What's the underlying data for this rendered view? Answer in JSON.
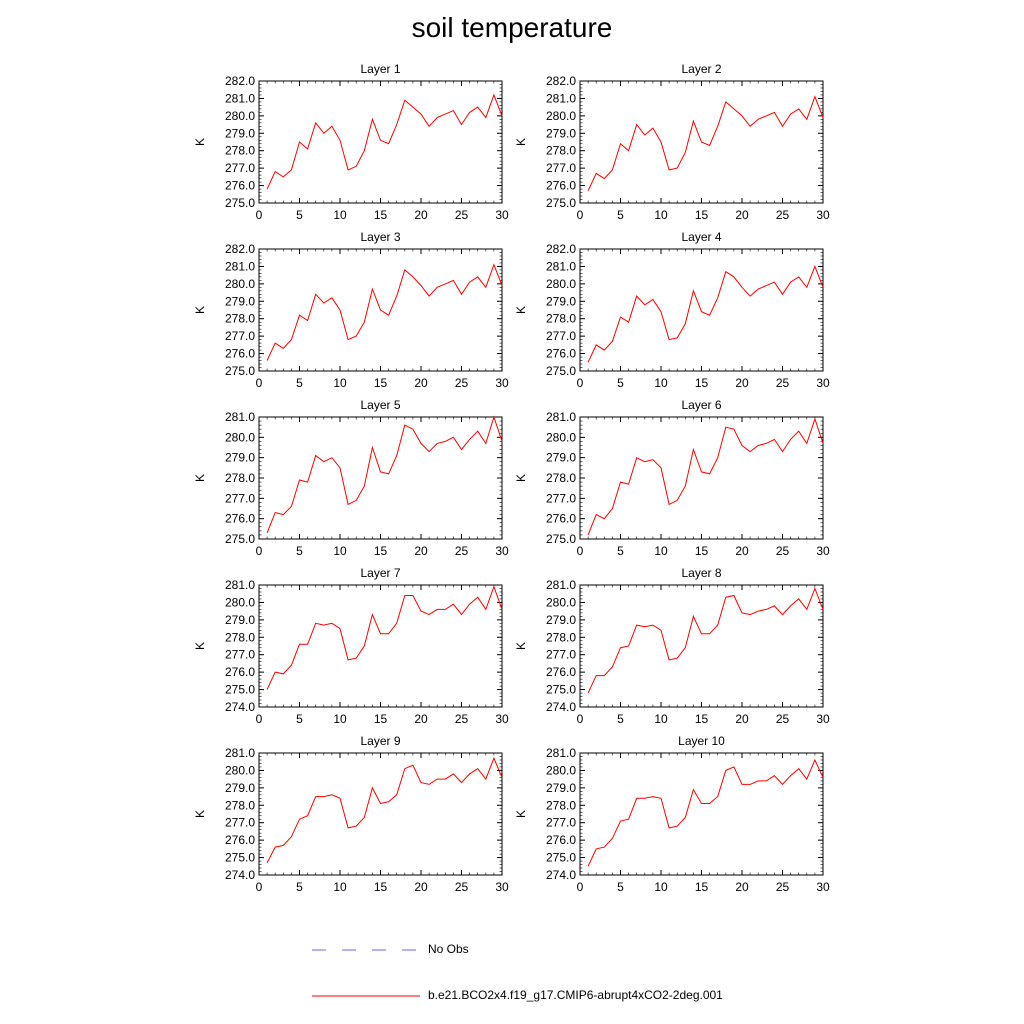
{
  "title": "soil temperature",
  "legend": {
    "entries": [
      {
        "label": "No Obs",
        "color": "#6a6ad8",
        "style": "dashed"
      },
      {
        "label": "b.e21.BCO2x4.f19_g17.CMIP6-abrupt4xCO2-2deg.001",
        "color": "#ff0000",
        "style": "solid"
      }
    ]
  },
  "chart_data": [
    {
      "type": "line",
      "title": "Layer 1",
      "ylabel": "K",
      "xlabel": "",
      "xlim": [
        0,
        30
      ],
      "ylim": [
        275.0,
        282.0
      ],
      "x_ticks": [
        0,
        5,
        10,
        15,
        20,
        25,
        30
      ],
      "y_ticks": [
        "275.0",
        "276.0",
        "277.0",
        "278.0",
        "279.0",
        "280.0",
        "281.0",
        "282.0"
      ],
      "x": [
        1,
        2,
        3,
        4,
        5,
        6,
        7,
        8,
        9,
        10,
        11,
        12,
        13,
        14,
        15,
        16,
        17,
        18,
        19,
        20,
        21,
        22,
        23,
        24,
        25,
        26,
        27,
        28,
        29,
        30
      ],
      "series": [
        {
          "name": "b.e21.BCO2x4.f19_g17.CMIP6-abrupt4xCO2-2deg.001",
          "color": "#ff0000",
          "values": [
            275.8,
            276.8,
            276.5,
            276.9,
            278.5,
            278.1,
            279.6,
            279.0,
            279.4,
            278.6,
            276.9,
            277.1,
            278.0,
            279.8,
            278.6,
            278.4,
            279.5,
            280.9,
            280.5,
            280.1,
            279.4,
            279.9,
            280.1,
            280.3,
            279.5,
            280.2,
            280.5,
            279.9,
            281.2,
            280.0
          ]
        }
      ]
    },
    {
      "type": "line",
      "title": "Layer 2",
      "ylabel": "K",
      "xlabel": "",
      "xlim": [
        0,
        30
      ],
      "ylim": [
        275.0,
        282.0
      ],
      "x_ticks": [
        0,
        5,
        10,
        15,
        20,
        25,
        30
      ],
      "y_ticks": [
        "275.0",
        "276.0",
        "277.0",
        "278.0",
        "279.0",
        "280.0",
        "281.0",
        "282.0"
      ],
      "x": [
        1,
        2,
        3,
        4,
        5,
        6,
        7,
        8,
        9,
        10,
        11,
        12,
        13,
        14,
        15,
        16,
        17,
        18,
        19,
        20,
        21,
        22,
        23,
        24,
        25,
        26,
        27,
        28,
        29,
        30
      ],
      "series": [
        {
          "name": "b.e21.BCO2x4.f19_g17.CMIP6-abrupt4xCO2-2deg.001",
          "color": "#ff0000",
          "values": [
            275.7,
            276.7,
            276.4,
            276.9,
            278.4,
            278.0,
            279.5,
            278.9,
            279.3,
            278.5,
            276.9,
            277.0,
            277.9,
            279.7,
            278.5,
            278.3,
            279.4,
            280.8,
            280.4,
            280.0,
            279.4,
            279.8,
            280.0,
            280.2,
            279.4,
            280.1,
            280.4,
            279.8,
            281.1,
            279.9
          ]
        }
      ]
    },
    {
      "type": "line",
      "title": "Layer 3",
      "ylabel": "K",
      "xlabel": "",
      "xlim": [
        0,
        30
      ],
      "ylim": [
        275.0,
        282.0
      ],
      "x_ticks": [
        0,
        5,
        10,
        15,
        20,
        25,
        30
      ],
      "y_ticks": [
        "275.0",
        "276.0",
        "277.0",
        "278.0",
        "279.0",
        "280.0",
        "281.0",
        "282.0"
      ],
      "x": [
        1,
        2,
        3,
        4,
        5,
        6,
        7,
        8,
        9,
        10,
        11,
        12,
        13,
        14,
        15,
        16,
        17,
        18,
        19,
        20,
        21,
        22,
        23,
        24,
        25,
        26,
        27,
        28,
        29,
        30
      ],
      "series": [
        {
          "name": "b.e21.BCO2x4.f19_g17.CMIP6-abrupt4xCO2-2deg.001",
          "color": "#ff0000",
          "values": [
            275.6,
            276.6,
            276.3,
            276.8,
            278.2,
            277.9,
            279.4,
            278.9,
            279.2,
            278.5,
            276.8,
            277.0,
            277.8,
            279.7,
            278.5,
            278.2,
            279.3,
            280.8,
            280.4,
            279.9,
            279.3,
            279.8,
            280.0,
            280.2,
            279.4,
            280.1,
            280.4,
            279.8,
            281.1,
            279.9
          ]
        }
      ]
    },
    {
      "type": "line",
      "title": "Layer 4",
      "ylabel": "K",
      "xlabel": "",
      "xlim": [
        0,
        30
      ],
      "ylim": [
        275.0,
        282.0
      ],
      "x_ticks": [
        0,
        5,
        10,
        15,
        20,
        25,
        30
      ],
      "y_ticks": [
        "275.0",
        "276.0",
        "277.0",
        "278.0",
        "279.0",
        "280.0",
        "281.0",
        "282.0"
      ],
      "x": [
        1,
        2,
        3,
        4,
        5,
        6,
        7,
        8,
        9,
        10,
        11,
        12,
        13,
        14,
        15,
        16,
        17,
        18,
        19,
        20,
        21,
        22,
        23,
        24,
        25,
        26,
        27,
        28,
        29,
        30
      ],
      "series": [
        {
          "name": "b.e21.BCO2x4.f19_g17.CMIP6-abrupt4xCO2-2deg.001",
          "color": "#ff0000",
          "values": [
            275.5,
            276.5,
            276.2,
            276.7,
            278.1,
            277.8,
            279.3,
            278.8,
            279.1,
            278.4,
            276.8,
            276.9,
            277.7,
            279.6,
            278.4,
            278.2,
            279.2,
            280.7,
            280.4,
            279.8,
            279.3,
            279.7,
            279.9,
            280.1,
            279.4,
            280.1,
            280.4,
            279.8,
            281.0,
            279.8
          ]
        }
      ]
    },
    {
      "type": "line",
      "title": "Layer 5",
      "ylabel": "K",
      "xlabel": "",
      "xlim": [
        0,
        30
      ],
      "ylim": [
        275.0,
        281.0
      ],
      "x_ticks": [
        0,
        5,
        10,
        15,
        20,
        25,
        30
      ],
      "y_ticks": [
        "275.0",
        "276.0",
        "277.0",
        "278.0",
        "279.0",
        "280.0",
        "281.0"
      ],
      "x": [
        1,
        2,
        3,
        4,
        5,
        6,
        7,
        8,
        9,
        10,
        11,
        12,
        13,
        14,
        15,
        16,
        17,
        18,
        19,
        20,
        21,
        22,
        23,
        24,
        25,
        26,
        27,
        28,
        29,
        30
      ],
      "series": [
        {
          "name": "b.e21.BCO2x4.f19_g17.CMIP6-abrupt4xCO2-2deg.001",
          "color": "#ff0000",
          "values": [
            275.3,
            276.3,
            276.2,
            276.6,
            277.9,
            277.8,
            279.1,
            278.8,
            279.0,
            278.5,
            276.7,
            276.9,
            277.6,
            279.5,
            278.3,
            278.2,
            279.1,
            280.6,
            280.4,
            279.7,
            279.3,
            279.7,
            279.8,
            280.0,
            279.4,
            279.9,
            280.3,
            279.7,
            281.0,
            279.8
          ]
        }
      ]
    },
    {
      "type": "line",
      "title": "Layer 6",
      "ylabel": "K",
      "xlabel": "",
      "xlim": [
        0,
        30
      ],
      "ylim": [
        275.0,
        281.0
      ],
      "x_ticks": [
        0,
        5,
        10,
        15,
        20,
        25,
        30
      ],
      "y_ticks": [
        "275.0",
        "276.0",
        "277.0",
        "278.0",
        "279.0",
        "280.0",
        "281.0"
      ],
      "x": [
        1,
        2,
        3,
        4,
        5,
        6,
        7,
        8,
        9,
        10,
        11,
        12,
        13,
        14,
        15,
        16,
        17,
        18,
        19,
        20,
        21,
        22,
        23,
        24,
        25,
        26,
        27,
        28,
        29,
        30
      ],
      "series": [
        {
          "name": "b.e21.BCO2x4.f19_g17.CMIP6-abrupt4xCO2-2deg.001",
          "color": "#ff0000",
          "values": [
            275.2,
            276.2,
            276.0,
            276.5,
            277.8,
            277.7,
            279.0,
            278.8,
            278.9,
            278.5,
            276.7,
            276.9,
            277.6,
            279.4,
            278.3,
            278.2,
            279.0,
            280.5,
            280.4,
            279.6,
            279.3,
            279.6,
            279.7,
            279.9,
            279.3,
            279.9,
            280.3,
            279.7,
            280.9,
            279.7
          ]
        }
      ]
    },
    {
      "type": "line",
      "title": "Layer 7",
      "ylabel": "K",
      "xlabel": "",
      "xlim": [
        0,
        30
      ],
      "ylim": [
        274.0,
        281.0
      ],
      "x_ticks": [
        0,
        5,
        10,
        15,
        20,
        25,
        30
      ],
      "y_ticks": [
        "274.0",
        "275.0",
        "276.0",
        "277.0",
        "278.0",
        "279.0",
        "280.0",
        "281.0"
      ],
      "x": [
        1,
        2,
        3,
        4,
        5,
        6,
        7,
        8,
        9,
        10,
        11,
        12,
        13,
        14,
        15,
        16,
        17,
        18,
        19,
        20,
        21,
        22,
        23,
        24,
        25,
        26,
        27,
        28,
        29,
        30
      ],
      "series": [
        {
          "name": "b.e21.BCO2x4.f19_g17.CMIP6-abrupt4xCO2-2deg.001",
          "color": "#ff0000",
          "values": [
            275.0,
            276.0,
            275.9,
            276.4,
            277.6,
            277.6,
            278.8,
            278.7,
            278.8,
            278.5,
            276.7,
            276.8,
            277.5,
            279.3,
            278.2,
            278.2,
            278.8,
            280.4,
            280.4,
            279.5,
            279.3,
            279.6,
            279.6,
            279.9,
            279.3,
            279.9,
            280.3,
            279.6,
            280.9,
            279.6
          ]
        }
      ]
    },
    {
      "type": "line",
      "title": "Layer 8",
      "ylabel": "K",
      "xlabel": "",
      "xlim": [
        0,
        30
      ],
      "ylim": [
        274.0,
        281.0
      ],
      "x_ticks": [
        0,
        5,
        10,
        15,
        20,
        25,
        30
      ],
      "y_ticks": [
        "274.0",
        "275.0",
        "276.0",
        "277.0",
        "278.0",
        "279.0",
        "280.0",
        "281.0"
      ],
      "x": [
        1,
        2,
        3,
        4,
        5,
        6,
        7,
        8,
        9,
        10,
        11,
        12,
        13,
        14,
        15,
        16,
        17,
        18,
        19,
        20,
        21,
        22,
        23,
        24,
        25,
        26,
        27,
        28,
        29,
        30
      ],
      "series": [
        {
          "name": "b.e21.BCO2x4.f19_g17.CMIP6-abrupt4xCO2-2deg.001",
          "color": "#ff0000",
          "values": [
            274.8,
            275.8,
            275.8,
            276.3,
            277.4,
            277.5,
            278.7,
            278.6,
            278.7,
            278.4,
            276.7,
            276.8,
            277.4,
            279.2,
            278.2,
            278.2,
            278.7,
            280.3,
            280.4,
            279.4,
            279.3,
            279.5,
            279.6,
            279.8,
            279.3,
            279.8,
            280.2,
            279.6,
            280.8,
            279.6
          ]
        }
      ]
    },
    {
      "type": "line",
      "title": "Layer 9",
      "ylabel": "K",
      "xlabel": "",
      "xlim": [
        0,
        30
      ],
      "ylim": [
        274.0,
        281.0
      ],
      "x_ticks": [
        0,
        5,
        10,
        15,
        20,
        25,
        30
      ],
      "y_ticks": [
        "274.0",
        "275.0",
        "276.0",
        "277.0",
        "278.0",
        "279.0",
        "280.0",
        "281.0"
      ],
      "x": [
        1,
        2,
        3,
        4,
        5,
        6,
        7,
        8,
        9,
        10,
        11,
        12,
        13,
        14,
        15,
        16,
        17,
        18,
        19,
        20,
        21,
        22,
        23,
        24,
        25,
        26,
        27,
        28,
        29,
        30
      ],
      "series": [
        {
          "name": "b.e21.BCO2x4.f19_g17.CMIP6-abrupt4xCO2-2deg.001",
          "color": "#ff0000",
          "values": [
            274.7,
            275.6,
            275.7,
            276.2,
            277.2,
            277.4,
            278.5,
            278.5,
            278.6,
            278.4,
            276.7,
            276.8,
            277.3,
            279.0,
            278.1,
            278.2,
            278.6,
            280.1,
            280.3,
            279.3,
            279.2,
            279.5,
            279.5,
            279.8,
            279.3,
            279.8,
            280.1,
            279.5,
            280.7,
            279.6
          ]
        }
      ]
    },
    {
      "type": "line",
      "title": "Layer 10",
      "ylabel": "K",
      "xlabel": "",
      "xlim": [
        0,
        30
      ],
      "ylim": [
        274.0,
        281.0
      ],
      "x_ticks": [
        0,
        5,
        10,
        15,
        20,
        25,
        30
      ],
      "y_ticks": [
        "274.0",
        "275.0",
        "276.0",
        "277.0",
        "278.0",
        "279.0",
        "280.0",
        "281.0"
      ],
      "x": [
        1,
        2,
        3,
        4,
        5,
        6,
        7,
        8,
        9,
        10,
        11,
        12,
        13,
        14,
        15,
        16,
        17,
        18,
        19,
        20,
        21,
        22,
        23,
        24,
        25,
        26,
        27,
        28,
        29,
        30
      ],
      "series": [
        {
          "name": "b.e21.BCO2x4.f19_g17.CMIP6-abrupt4xCO2-2deg.001",
          "color": "#ff0000",
          "values": [
            274.5,
            275.5,
            275.6,
            276.1,
            277.1,
            277.2,
            278.4,
            278.4,
            278.5,
            278.4,
            276.7,
            276.8,
            277.3,
            278.9,
            278.1,
            278.1,
            278.5,
            280.0,
            280.2,
            279.2,
            279.2,
            279.4,
            279.4,
            279.7,
            279.2,
            279.7,
            280.1,
            279.5,
            280.6,
            279.6
          ]
        }
      ]
    }
  ]
}
